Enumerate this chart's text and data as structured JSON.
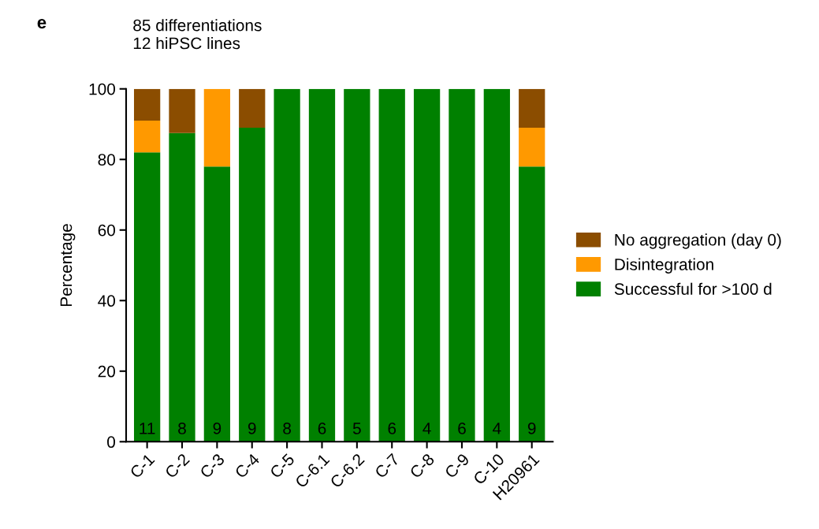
{
  "chart_data": {
    "type": "bar",
    "title": "85 differentiations",
    "subtitle": "12 hiPSC lines",
    "ylabel": "Percentage",
    "categories": [
      "C-1",
      "C-2",
      "C-3",
      "C-4",
      "C-5",
      "C-6.1",
      "C-6.2",
      "C-7",
      "C-8",
      "C-9",
      "C-10",
      "H20961"
    ],
    "stacked": true,
    "series": [
      {
        "name": "Successful for >100 d",
        "color": "#008000",
        "values": [
          82,
          87.5,
          78,
          89,
          100,
          100,
          100,
          100,
          100,
          100,
          100,
          78
        ]
      },
      {
        "name": "Disintegration",
        "color": "#ff9900",
        "values": [
          9,
          0,
          22,
          0,
          0,
          0,
          0,
          0,
          0,
          0,
          0,
          11
        ]
      },
      {
        "name": "No aggregation (day 0)",
        "color": "#8b4d00",
        "values": [
          9,
          12.5,
          0,
          11,
          0,
          0,
          0,
          0,
          0,
          0,
          0,
          11
        ]
      }
    ],
    "ylim": [
      0,
      100
    ],
    "yticks": [
      0,
      20,
      40,
      60,
      80,
      100
    ],
    "grid": false,
    "legend": "right",
    "annotations": [
      "e",
      "11",
      "8",
      "9",
      "9",
      "8",
      "6",
      "5",
      "6",
      "4",
      "6",
      "4",
      "9"
    ]
  }
}
